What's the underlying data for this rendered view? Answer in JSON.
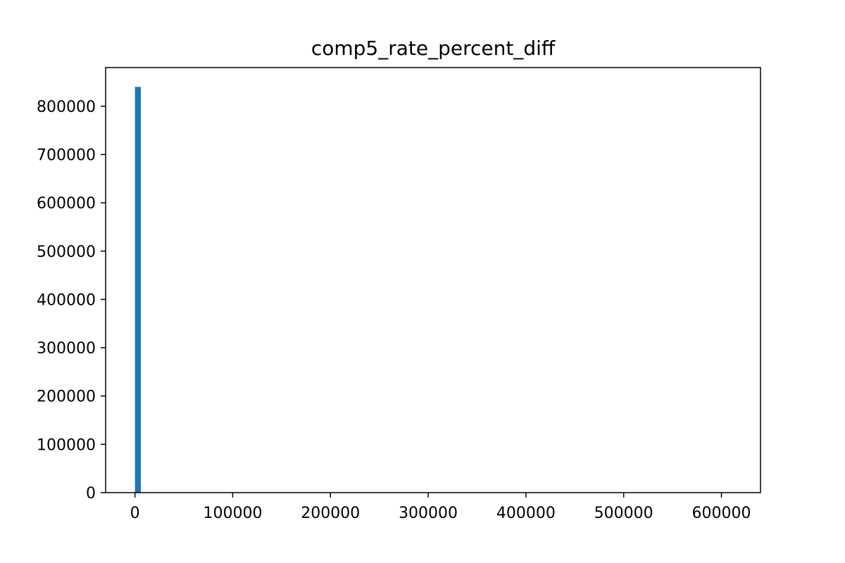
{
  "chart_data": {
    "type": "bar",
    "title": "comp5_rate_percent_diff",
    "xlabel": "",
    "ylabel": "",
    "xlim": [
      -30000,
      640000
    ],
    "ylim": [
      0,
      880000
    ],
    "x_ticks": [
      0,
      100000,
      200000,
      300000,
      400000,
      500000,
      600000
    ],
    "x_tick_labels": [
      "0",
      "100000",
      "200000",
      "300000",
      "400000",
      "500000",
      "600000"
    ],
    "y_ticks": [
      0,
      100000,
      200000,
      300000,
      400000,
      500000,
      600000,
      700000,
      800000
    ],
    "y_tick_labels": [
      "0",
      "100000",
      "200000",
      "300000",
      "400000",
      "500000",
      "600000",
      "700000",
      "800000"
    ],
    "bins": [
      {
        "x0": 0,
        "x1": 6000,
        "count": 840000
      }
    ],
    "grid": false,
    "bar_color": "#1f77b4"
  }
}
